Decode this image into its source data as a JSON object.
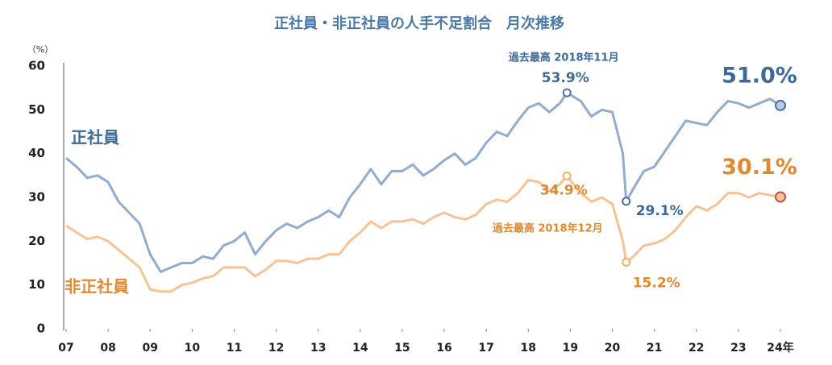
{
  "chart_data": {
    "type": "line",
    "title": "正社員・非正社員の人手不足割合　月次推移",
    "y_unit": "（%）",
    "x": [
      2007.0,
      2007.25,
      2007.5,
      2007.75,
      2008.0,
      2008.25,
      2008.5,
      2008.75,
      2009.0,
      2009.25,
      2009.5,
      2009.75,
      2010.0,
      2010.25,
      2010.5,
      2010.75,
      2011.0,
      2011.25,
      2011.5,
      2011.75,
      2012.0,
      2012.25,
      2012.5,
      2012.75,
      2013.0,
      2013.25,
      2013.5,
      2013.75,
      2014.0,
      2014.25,
      2014.5,
      2014.75,
      2015.0,
      2015.25,
      2015.5,
      2015.75,
      2016.0,
      2016.25,
      2016.5,
      2016.75,
      2017.0,
      2017.25,
      2017.5,
      2017.75,
      2018.0,
      2018.25,
      2018.5,
      2018.75,
      2018.92,
      2019.25,
      2019.5,
      2019.75,
      2020.0,
      2020.25,
      2020.33,
      2020.5,
      2020.75,
      2021.0,
      2021.25,
      2021.5,
      2021.75,
      2022.0,
      2022.25,
      2022.5,
      2022.75,
      2023.0,
      2023.25,
      2023.5,
      2023.75,
      2024.0
    ],
    "series": [
      {
        "name": "正社員",
        "color": "#92acd0",
        "values": [
          39,
          37,
          34.5,
          35,
          33.5,
          29,
          26.5,
          24,
          17,
          13,
          14,
          15,
          15,
          16.5,
          16,
          19,
          20,
          22,
          17,
          20,
          22.5,
          24,
          23,
          24.5,
          25.5,
          27,
          25.5,
          30,
          33,
          36.5,
          33,
          36,
          36,
          37.5,
          35,
          36.5,
          38.5,
          40,
          37.5,
          39,
          42.5,
          45,
          44,
          47.5,
          50.5,
          51.5,
          49.5,
          51.5,
          53.9,
          52,
          48.5,
          50,
          49.5,
          40,
          29.1,
          32,
          36,
          37,
          40.5,
          44,
          47.5,
          47,
          46.5,
          49.5,
          52,
          51.5,
          50.5,
          51.5,
          52.5,
          51.0
        ],
        "value_labels": [
          null,
          null,
          null,
          null,
          null,
          null,
          null,
          null,
          null,
          null,
          null,
          null,
          null,
          null,
          null,
          null,
          null,
          null,
          null,
          null,
          null,
          null,
          null,
          null,
          null,
          null,
          null,
          null,
          null,
          null,
          null,
          null,
          null,
          null,
          null,
          null,
          null,
          null,
          null,
          null,
          null,
          null,
          null,
          null,
          null,
          null,
          null,
          null,
          "53.9%",
          null,
          null,
          null,
          null,
          null,
          "29.1%",
          null,
          null,
          null,
          null,
          null,
          null,
          null,
          null,
          null,
          null,
          null,
          null,
          null,
          null,
          "51.0%"
        ]
      },
      {
        "name": "非正社員",
        "color": "#f6c394",
        "values": [
          23.5,
          22,
          20.5,
          21,
          20,
          18,
          16,
          14,
          9,
          8.5,
          8.5,
          10,
          10.5,
          11.5,
          12,
          14,
          14,
          14,
          12,
          13.5,
          15.5,
          15.5,
          15,
          16,
          16,
          17,
          17,
          20,
          22,
          24.5,
          23,
          24.5,
          24.5,
          25,
          24,
          25.5,
          26.5,
          25.5,
          25,
          26,
          28.5,
          29.5,
          29,
          31,
          34,
          33.5,
          31.5,
          33,
          34.9,
          31,
          29,
          30,
          28.5,
          20,
          15.2,
          16.5,
          19,
          19.5,
          20.5,
          22.5,
          25.5,
          28,
          27,
          28.5,
          31,
          31,
          30,
          31,
          30.5,
          30.1
        ],
        "value_labels": [
          null,
          null,
          null,
          null,
          null,
          null,
          null,
          null,
          null,
          null,
          null,
          null,
          null,
          null,
          null,
          null,
          null,
          null,
          null,
          null,
          null,
          null,
          null,
          null,
          null,
          null,
          null,
          null,
          null,
          null,
          null,
          null,
          null,
          null,
          null,
          null,
          null,
          null,
          null,
          null,
          null,
          null,
          null,
          null,
          null,
          null,
          null,
          null,
          "34.9%",
          null,
          null,
          null,
          null,
          null,
          "15.2%",
          null,
          null,
          null,
          null,
          null,
          null,
          null,
          null,
          null,
          null,
          null,
          null,
          null,
          null,
          "30.1%"
        ]
      }
    ],
    "annotations": [
      "過去最高 2018年11月",
      "過去最高 2018年12月"
    ],
    "xlim": [
      2007,
      2024
    ],
    "xticks": [
      {
        "value": 2007,
        "label": "07"
      },
      {
        "value": 2008,
        "label": "08"
      },
      {
        "value": 2009,
        "label": "09"
      },
      {
        "value": 2010,
        "label": "10"
      },
      {
        "value": 2011,
        "label": "11"
      },
      {
        "value": 2012,
        "label": "12"
      },
      {
        "value": 2013,
        "label": "13"
      },
      {
        "value": 2014,
        "label": "14"
      },
      {
        "value": 2015,
        "label": "15"
      },
      {
        "value": 2016,
        "label": "16"
      },
      {
        "value": 2017,
        "label": "17"
      },
      {
        "value": 2018,
        "label": "18"
      },
      {
        "value": 2019,
        "label": "19"
      },
      {
        "value": 2020,
        "label": "20"
      },
      {
        "value": 2021,
        "label": "21"
      },
      {
        "value": 2022,
        "label": "22"
      },
      {
        "value": 2023,
        "label": "23"
      },
      {
        "value": 2024,
        "label": "24年"
      }
    ],
    "ylim": [
      0,
      60
    ],
    "yticks": [
      0,
      10,
      20,
      30,
      40,
      50,
      60
    ]
  }
}
